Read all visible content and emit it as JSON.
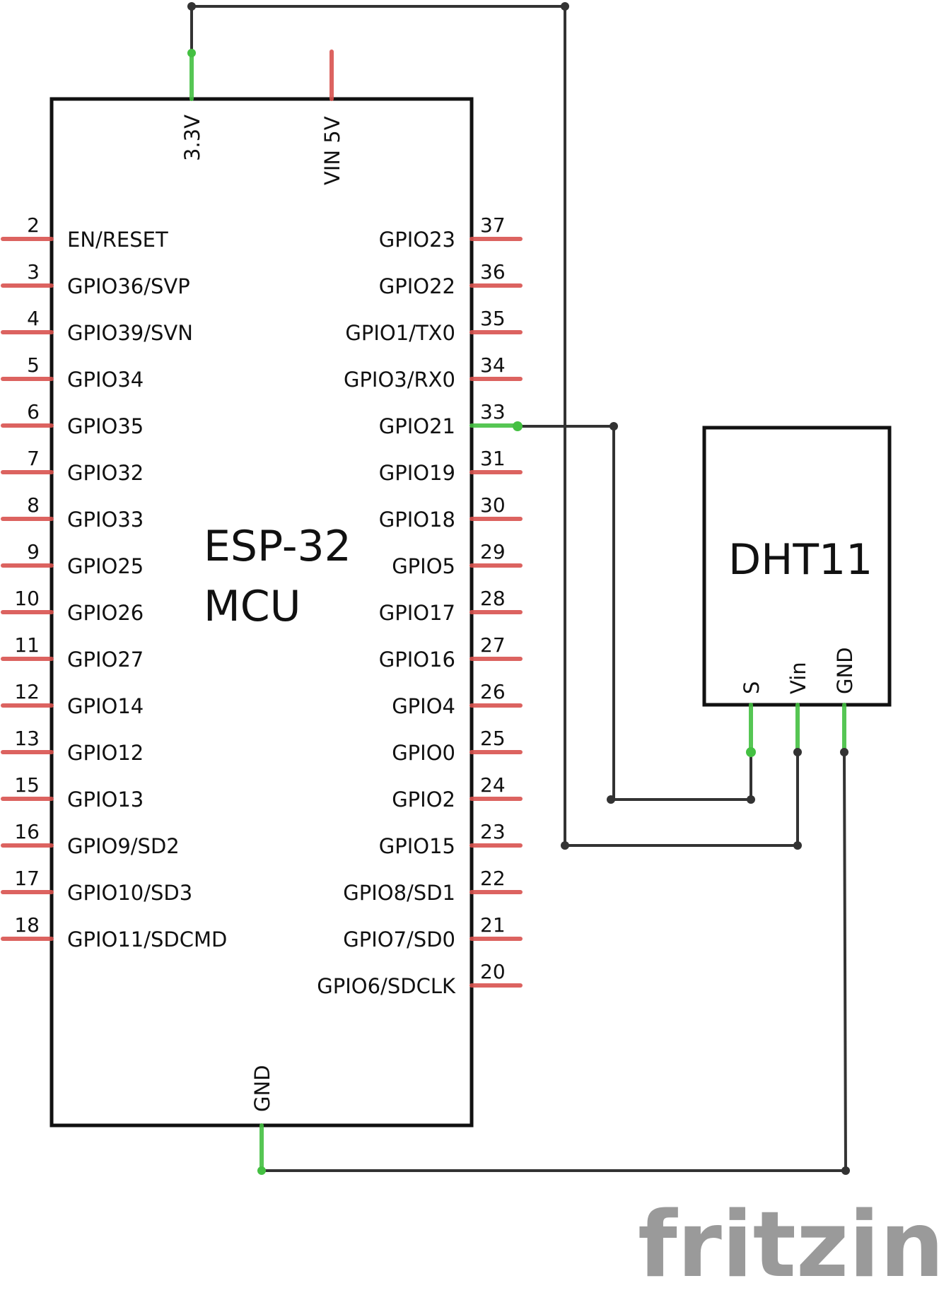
{
  "mcu": {
    "title_line1": "ESP-32",
    "title_line2": "MCU",
    "top_pins": [
      "3.3V",
      "VIN 5V"
    ],
    "bottom_pin": "GND",
    "left_pins": [
      {
        "num": "2",
        "label": "EN/RESET"
      },
      {
        "num": "3",
        "label": "GPIO36/SVP"
      },
      {
        "num": "4",
        "label": "GPIO39/SVN"
      },
      {
        "num": "5",
        "label": "GPIO34"
      },
      {
        "num": "6",
        "label": "GPIO35"
      },
      {
        "num": "7",
        "label": "GPIO32"
      },
      {
        "num": "8",
        "label": "GPIO33"
      },
      {
        "num": "9",
        "label": "GPIO25"
      },
      {
        "num": "10",
        "label": "GPIO26"
      },
      {
        "num": "11",
        "label": "GPIO27"
      },
      {
        "num": "12",
        "label": "GPIO14"
      },
      {
        "num": "13",
        "label": "GPIO12"
      },
      {
        "num": "15",
        "label": "GPIO13"
      },
      {
        "num": "16",
        "label": "GPIO9/SD2"
      },
      {
        "num": "17",
        "label": "GPIO10/SD3"
      },
      {
        "num": "18",
        "label": "GPIO11/SDCMD"
      }
    ],
    "right_pins": [
      {
        "num": "37",
        "label": "GPIO23"
      },
      {
        "num": "36",
        "label": "GPIO22"
      },
      {
        "num": "35",
        "label": "GPIO1/TX0"
      },
      {
        "num": "34",
        "label": "GPIO3/RX0"
      },
      {
        "num": "33",
        "label": "GPIO21",
        "connected": true
      },
      {
        "num": "31",
        "label": "GPIO19"
      },
      {
        "num": "30",
        "label": "GPIO18"
      },
      {
        "num": "29",
        "label": "GPIO5"
      },
      {
        "num": "28",
        "label": "GPIO17"
      },
      {
        "num": "27",
        "label": "GPIO16"
      },
      {
        "num": "26",
        "label": "GPIO4"
      },
      {
        "num": "25",
        "label": "GPIO0"
      },
      {
        "num": "24",
        "label": "GPIO2"
      },
      {
        "num": "23",
        "label": "GPIO15"
      },
      {
        "num": "22",
        "label": "GPIO8/SD1"
      },
      {
        "num": "21",
        "label": "GPIO7/SD0"
      },
      {
        "num": "20",
        "label": "GPIO6/SDCLK"
      }
    ]
  },
  "sensor": {
    "title": "DHT11",
    "pins": [
      "S",
      "Vin",
      "GND"
    ]
  },
  "logo": "fritzing",
  "colors": {
    "outline": "#111111",
    "wire": "#333333",
    "unconnected_pin": "#d9534f",
    "connected_pin": "#44c042",
    "logo": "#9a9a9a"
  }
}
